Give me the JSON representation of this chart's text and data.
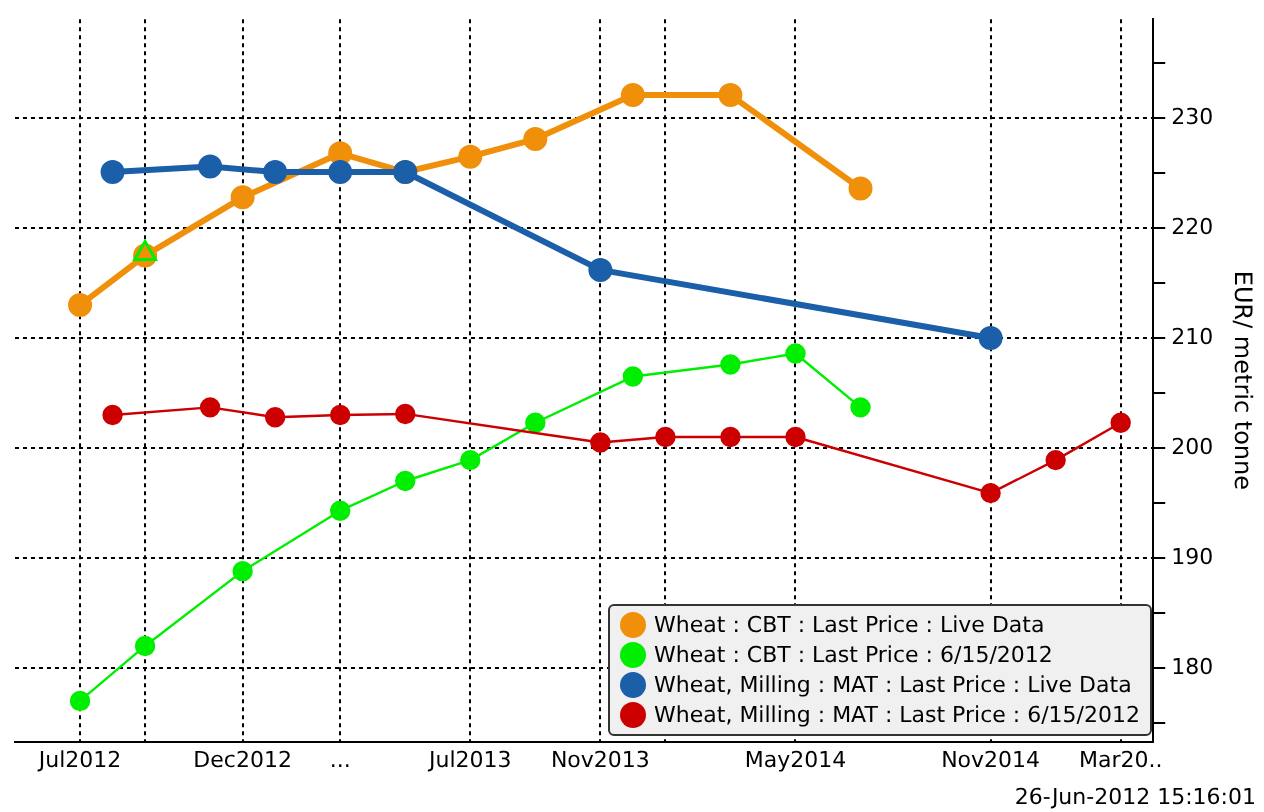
{
  "chart_data": {
    "type": "line",
    "ylabel": "EUR/ metric tonne",
    "annotations": [
      "26-Jun-2012 15:16:01"
    ],
    "xlim": [
      "2012-05",
      "2015-04"
    ],
    "xticks": [
      {
        "value": "2012-07",
        "label": "Jul2012"
      },
      {
        "value": "2012-09",
        "label": null
      },
      {
        "value": "2012-12",
        "label": "Dec2012"
      },
      {
        "value": "2013-03",
        "label": "..."
      },
      {
        "value": "2013-07",
        "label": "Jul2013"
      },
      {
        "value": "2013-11",
        "label": "Nov2013"
      },
      {
        "value": "2014-01",
        "label": null
      },
      {
        "value": "2014-05",
        "label": "May2014"
      },
      {
        "value": "2014-11",
        "label": "Nov2014"
      },
      {
        "value": "2015-03",
        "label": "Mar20.."
      }
    ],
    "ylim": [
      173.3,
      239
    ],
    "yticks": [
      {
        "value": 175,
        "label": null
      },
      180,
      {
        "value": 185,
        "label": null
      },
      190,
      {
        "value": 195,
        "label": null
      },
      200,
      {
        "value": 205,
        "label": null
      },
      210,
      {
        "value": 215,
        "label": null
      },
      220,
      {
        "value": 225,
        "label": null
      },
      230,
      {
        "value": 235,
        "label": null
      }
    ],
    "grid": true,
    "legend": "bottom right",
    "marker": "circle",
    "series": [
      {
        "name": "Wheat : CBT : Last Price : Live Data",
        "color": "#f0900a",
        "x": [
          "2012-07",
          "2012-09",
          "2012-12",
          "2013-03",
          "2013-05",
          "2013-07",
          "2013-09",
          "2013-12",
          "2014-03",
          "2014-07"
        ],
        "values": [
          213.0,
          217.5,
          222.8,
          226.8,
          225.1,
          226.5,
          228.1,
          232.1,
          232.1,
          223.6
        ]
      },
      {
        "name": "Wheat : CBT : Last Price : 6/15/2012",
        "color": "#00ee00",
        "x": [
          "2012-07",
          "2012-09",
          "2012-12",
          "2013-03",
          "2013-05",
          "2013-07",
          "2013-09",
          "2013-12",
          "2014-03",
          "2014-05",
          "2014-07"
        ],
        "values": [
          177.0,
          182.0,
          188.8,
          194.3,
          197.0,
          198.9,
          202.3,
          206.5,
          207.6,
          208.6,
          203.7
        ]
      },
      {
        "name": "Wheat, Milling : MAT : Last Price : Live Data",
        "color": "#1a5fa8",
        "x": [
          "2012-08",
          "2012-11",
          "2013-01",
          "2013-03",
          "2013-05",
          "2013-11",
          "2014-11"
        ],
        "values": [
          225.1,
          225.6,
          225.1,
          225.1,
          225.1,
          216.2,
          210.0
        ]
      },
      {
        "name": "Wheat, Milling : MAT : Last Price : 6/15/2012",
        "color": "#cc0000",
        "x": [
          "2012-08",
          "2012-11",
          "2013-01",
          "2013-03",
          "2013-05",
          "2013-11",
          "2014-01",
          "2014-03",
          "2014-05",
          "2014-11",
          "2015-01",
          "2015-03"
        ],
        "values": [
          203.0,
          203.7,
          202.8,
          203.0,
          203.1,
          200.5,
          201.0,
          201.0,
          201.0,
          195.9,
          198.9,
          202.3
        ]
      },
      {
        "type": "scatter",
        "marker": "triangle",
        "color": "#00ee00",
        "x": [
          "2012-09"
        ],
        "values": [
          217.7
        ]
      }
    ]
  }
}
